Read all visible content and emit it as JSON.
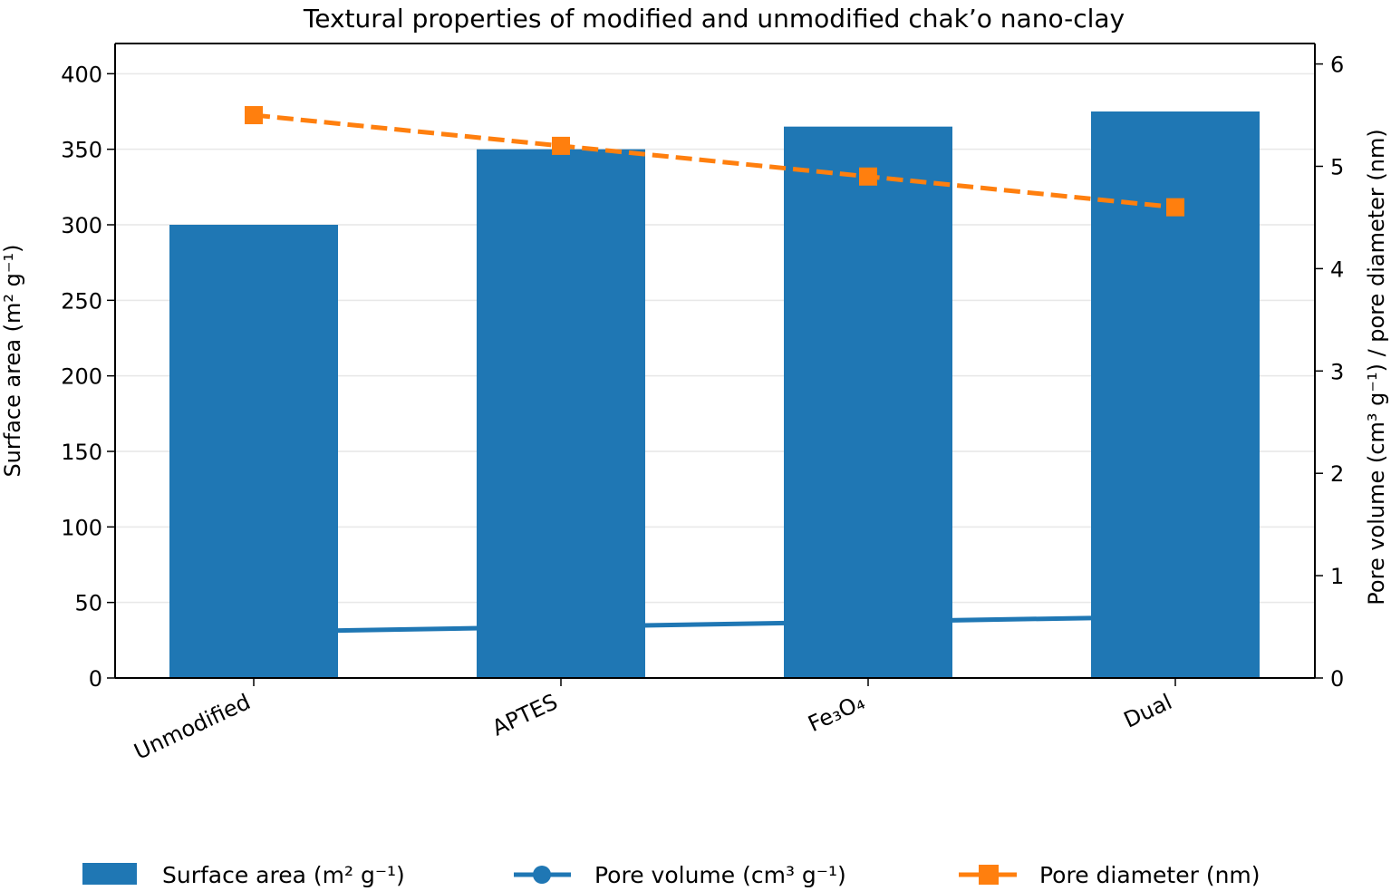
{
  "chart_data": {
    "type": "bar",
    "title": "Textural properties of modified and unmodified chak’o nano-clay",
    "categories": [
      "Unmodified",
      "APTES",
      "Fe₃O₄",
      "Dual"
    ],
    "xlabel": "",
    "ylabel": "Surface area (m² g⁻¹)",
    "y2label": "Pore volume (cm³ g⁻¹) / pore diameter (nm)",
    "ylim": [
      0,
      420
    ],
    "y2lim": [
      0,
      6.2
    ],
    "yticks": [
      0,
      50,
      100,
      150,
      200,
      250,
      300,
      350,
      400
    ],
    "y2ticks": [
      0,
      1,
      2,
      3,
      4,
      5,
      6
    ],
    "grid": "horizontal",
    "legend_position": "bottom",
    "series": [
      {
        "name": "Surface area (m² g⁻¹)",
        "type": "bar",
        "axis": "left",
        "color": "#1f77b4",
        "values": [
          300,
          350,
          365,
          375
        ]
      },
      {
        "name": "Pore volume (cm³ g⁻¹)",
        "type": "line",
        "axis": "right",
        "marker": "circle",
        "linestyle": "solid",
        "color": "#1f77b4",
        "values": [
          0.45,
          0.5,
          0.55,
          0.6
        ]
      },
      {
        "name": "Pore diameter (nm)",
        "type": "line",
        "axis": "right",
        "marker": "square",
        "linestyle": "dashed",
        "color": "#ff7f0e",
        "values": [
          5.5,
          5.2,
          4.9,
          4.6
        ]
      }
    ]
  }
}
